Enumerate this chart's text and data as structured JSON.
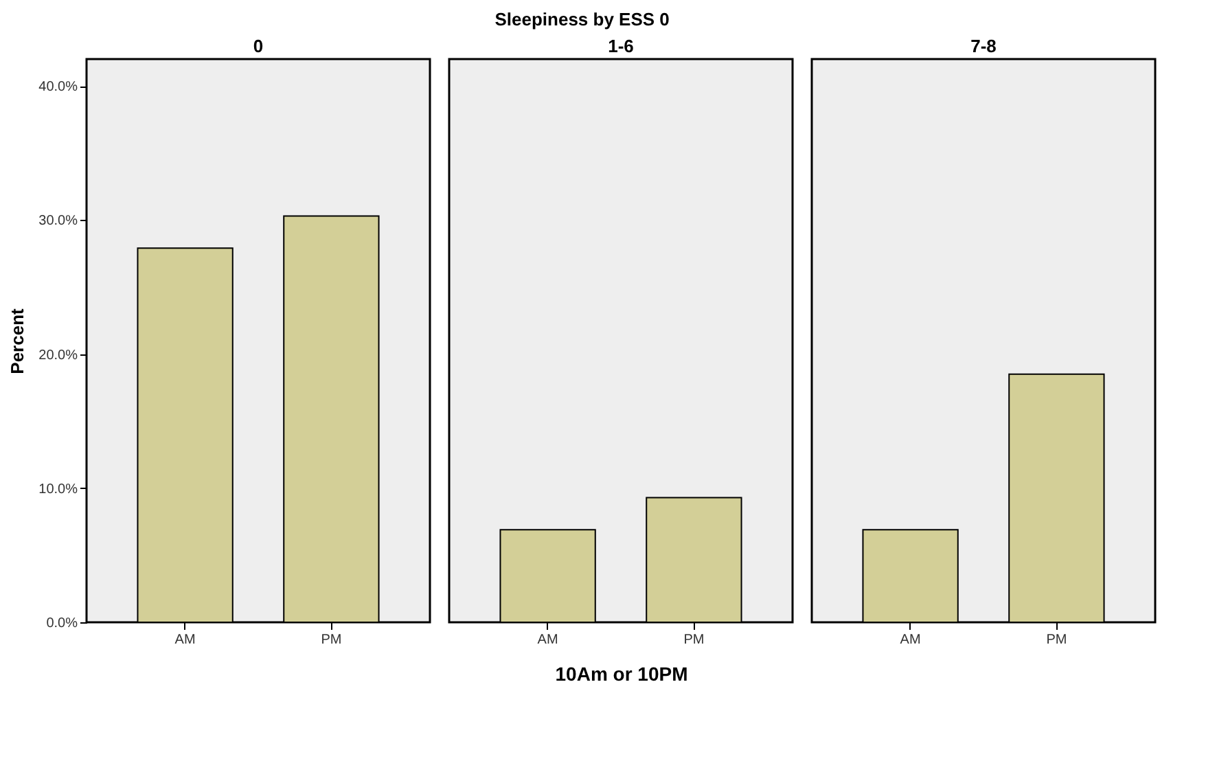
{
  "chart_data": [
    {
      "type": "bar",
      "title": "0",
      "ylabel": "Percent",
      "categories": [
        "AM",
        "PM"
      ],
      "values": [
        27.9,
        30.3
      ],
      "color": "#d3cf97",
      "ylim": [
        0,
        42
      ],
      "yticks": [
        {
          "value": 0,
          "label": "0.0%"
        },
        {
          "value": 10,
          "label": "10.0%"
        },
        {
          "value": 20,
          "label": "20.0%"
        },
        {
          "value": 30,
          "label": "30.0%"
        },
        {
          "value": 40,
          "label": "40.0%"
        }
      ],
      "grid": false
    },
    {
      "type": "bar",
      "title": "1-6",
      "xlabel": "10Am or 10PM",
      "annotations": [
        "Sleepiness by ESS 0"
      ],
      "categories": [
        "AM",
        "PM"
      ],
      "values": [
        6.9,
        9.3
      ],
      "color": "#d3cf97",
      "ylim": [
        0,
        42
      ],
      "tick_labels": "x",
      "grid": false
    },
    {
      "type": "bar",
      "title": "7-8",
      "categories": [
        "AM",
        "PM"
      ],
      "values": [
        6.9,
        18.5
      ],
      "color": "#d3cf97",
      "ylim": [
        0,
        42
      ],
      "tick_labels": "x",
      "grid": false
    }
  ]
}
